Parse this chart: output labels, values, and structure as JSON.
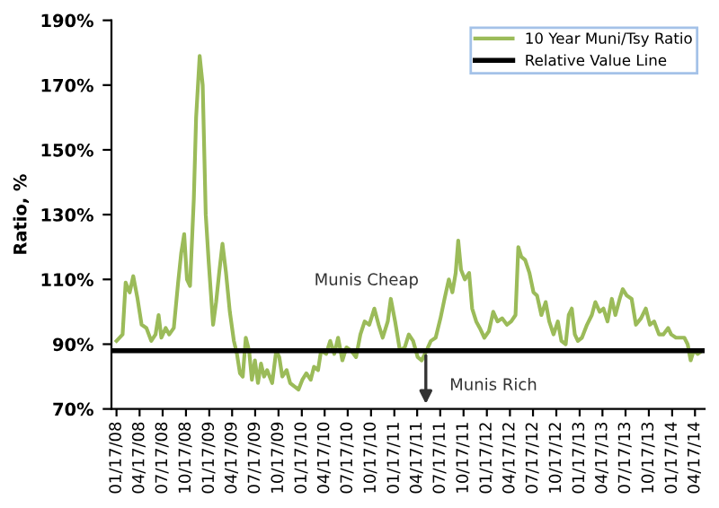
{
  "chart_data": {
    "type": "line",
    "ylabel": "Ratio, %",
    "xlim": [
      "2007-12-28",
      "2014-05-25"
    ],
    "ylim": [
      70,
      190
    ],
    "yticks": [
      {
        "value": 70,
        "label": "70%"
      },
      {
        "value": 90,
        "label": "90%"
      },
      {
        "value": 110,
        "label": "110%"
      },
      {
        "value": 130,
        "label": "130%"
      },
      {
        "value": 150,
        "label": "150%"
      },
      {
        "value": 170,
        "label": "170%"
      },
      {
        "value": 190,
        "label": "190%"
      }
    ],
    "xticks": [
      {
        "value": "2008-01-17",
        "label": "01/17/08"
      },
      {
        "value": "2008-04-17",
        "label": "04/17/08"
      },
      {
        "value": "2008-07-17",
        "label": "07/17/08"
      },
      {
        "value": "2008-10-17",
        "label": "10/17/08"
      },
      {
        "value": "2009-01-17",
        "label": "01/17/09"
      },
      {
        "value": "2009-04-17",
        "label": "04/17/09"
      },
      {
        "value": "2009-07-17",
        "label": "07/17/09"
      },
      {
        "value": "2009-10-17",
        "label": "10/17/09"
      },
      {
        "value": "2010-01-17",
        "label": "01/17/10"
      },
      {
        "value": "2010-04-17",
        "label": "04/17/10"
      },
      {
        "value": "2010-07-17",
        "label": "07/17/10"
      },
      {
        "value": "2010-10-17",
        "label": "10/17/10"
      },
      {
        "value": "2011-01-17",
        "label": "01/17/11"
      },
      {
        "value": "2011-04-17",
        "label": "04/17/11"
      },
      {
        "value": "2011-07-17",
        "label": "07/17/11"
      },
      {
        "value": "2011-10-17",
        "label": "10/17/11"
      },
      {
        "value": "2012-01-17",
        "label": "01/17/12"
      },
      {
        "value": "2012-04-17",
        "label": "04/17/12"
      },
      {
        "value": "2012-07-17",
        "label": "07/17/12"
      },
      {
        "value": "2012-10-17",
        "label": "10/17/12"
      },
      {
        "value": "2013-01-17",
        "label": "01/17/13"
      },
      {
        "value": "2013-04-17",
        "label": "04/17/13"
      },
      {
        "value": "2013-07-17",
        "label": "07/17/13"
      },
      {
        "value": "2013-10-17",
        "label": "10/17/13"
      },
      {
        "value": "2014-01-17",
        "label": "01/17/14"
      },
      {
        "value": "2014-04-17",
        "label": "04/17/14"
      }
    ],
    "x": [
      "2008-01-17",
      "2008-02-10",
      "2008-02-22",
      "2008-03-09",
      "2008-03-23",
      "2008-04-09",
      "2008-04-25",
      "2008-05-14",
      "2008-06-02",
      "2008-06-19",
      "2008-07-01",
      "2008-07-12",
      "2008-07-29",
      "2008-08-12",
      "2008-08-30",
      "2008-09-16",
      "2008-09-28",
      "2008-10-10",
      "2008-10-21",
      "2008-11-02",
      "2008-11-17",
      "2008-11-26",
      "2008-12-10",
      "2008-12-22",
      "2009-01-03",
      "2009-01-15",
      "2009-02-01",
      "2009-02-13",
      "2009-02-25",
      "2009-03-10",
      "2009-03-24",
      "2009-04-08",
      "2009-04-24",
      "2009-05-06",
      "2009-05-18",
      "2009-05-29",
      "2009-06-10",
      "2009-06-23",
      "2009-07-04",
      "2009-07-16",
      "2009-07-28",
      "2009-08-09",
      "2009-08-21",
      "2009-09-02",
      "2009-09-22",
      "2009-10-08",
      "2009-10-20",
      "2009-11-01",
      "2009-11-18",
      "2009-12-02",
      "2009-12-18",
      "2010-01-04",
      "2010-01-19",
      "2010-02-04",
      "2010-02-21",
      "2010-03-06",
      "2010-03-22",
      "2010-04-03",
      "2010-04-23",
      "2010-05-09",
      "2010-05-25",
      "2010-06-09",
      "2010-06-26",
      "2010-07-12",
      "2010-07-31",
      "2010-08-19",
      "2010-09-05",
      "2010-09-22",
      "2010-10-10",
      "2010-10-30",
      "2010-11-16",
      "2010-12-02",
      "2010-12-22",
      "2011-01-03",
      "2011-01-20",
      "2011-02-08",
      "2011-02-27",
      "2011-03-15",
      "2011-04-01",
      "2011-04-19",
      "2011-05-05",
      "2011-05-24",
      "2011-06-10",
      "2011-06-29",
      "2011-07-18",
      "2011-08-03",
      "2011-08-20",
      "2011-09-03",
      "2011-09-16",
      "2011-09-26",
      "2011-10-07",
      "2011-10-22",
      "2011-11-08",
      "2011-11-20",
      "2011-12-06",
      "2011-12-20",
      "2012-01-07",
      "2012-01-25",
      "2012-02-11",
      "2012-02-28",
      "2012-03-17",
      "2012-04-05",
      "2012-04-22",
      "2012-05-09",
      "2012-05-20",
      "2012-06-01",
      "2012-06-16",
      "2012-07-03",
      "2012-07-19",
      "2012-08-02",
      "2012-08-19",
      "2012-09-05",
      "2012-09-19",
      "2012-10-06",
      "2012-10-23",
      "2012-11-06",
      "2012-11-23",
      "2012-12-05",
      "2012-12-17",
      "2012-12-29",
      "2013-01-10",
      "2013-01-26",
      "2013-02-15",
      "2013-03-06",
      "2013-03-20",
      "2013-04-06",
      "2013-04-21",
      "2013-05-07",
      "2013-05-24",
      "2013-06-07",
      "2013-06-24",
      "2013-07-06",
      "2013-07-22",
      "2013-08-10",
      "2013-08-27",
      "2013-09-16",
      "2013-10-05",
      "2013-10-21",
      "2013-11-07",
      "2013-11-26",
      "2013-12-13",
      "2014-01-01",
      "2014-01-13",
      "2014-02-01",
      "2014-02-18",
      "2014-03-06",
      "2014-03-19",
      "2014-03-31",
      "2014-04-12",
      "2014-04-28",
      "2014-05-15"
    ],
    "series": [
      {
        "name": "10 Year Muni/Tsy Ratio",
        "color": "#9bbb59",
        "values": [
          91,
          93,
          109,
          106,
          111,
          104,
          96,
          95,
          91,
          93,
          99,
          92,
          95,
          93,
          95,
          109,
          118,
          124,
          110,
          108,
          135,
          160,
          179,
          170,
          130,
          115,
          96,
          103,
          112,
          121,
          112,
          100,
          91,
          87,
          81,
          80,
          92,
          88,
          79,
          85,
          78,
          84,
          80,
          82,
          78,
          88,
          86,
          80,
          82,
          78,
          77,
          76,
          79,
          81,
          79,
          83,
          82,
          88,
          87,
          91,
          87,
          92,
          85,
          89,
          88,
          86,
          93,
          97,
          96,
          101,
          96,
          92,
          97,
          104,
          97,
          88,
          89,
          93,
          91,
          86,
          85,
          88,
          91,
          92,
          98,
          104,
          110,
          106,
          112,
          122,
          113,
          110,
          112,
          101,
          97,
          95,
          92,
          94,
          100,
          97,
          98,
          96,
          97,
          99,
          120,
          117,
          116,
          112,
          106,
          105,
          99,
          103,
          97,
          93,
          97,
          91,
          90,
          99,
          101,
          93,
          91,
          92,
          96,
          99,
          103,
          100,
          101,
          97,
          104,
          99,
          104,
          107,
          105,
          104,
          96,
          98,
          101,
          96,
          97,
          93,
          93,
          95,
          93,
          92,
          92,
          92,
          90,
          85,
          88,
          87,
          88
        ]
      }
    ],
    "ref_lines": [
      {
        "axis": "y",
        "value": 88,
        "label": "Relative Value Line",
        "color": "#000000"
      }
    ],
    "annotations": [
      "Munis Cheap",
      "Munis Rich"
    ],
    "legend": "top right",
    "grid": false,
    "marker": "none",
    "line_style": "solid"
  }
}
